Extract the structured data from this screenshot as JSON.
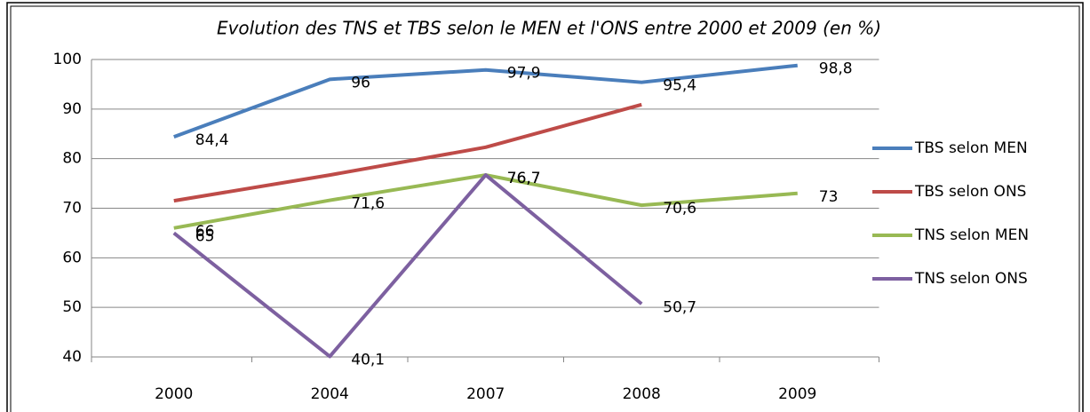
{
  "chart_data": {
    "type": "line",
    "title": "Evolution des TNS et TBS selon le MEN et l'ONS entre 2000 et 2009 (en %)",
    "categories": [
      "2000",
      "2004",
      "2007",
      "2008",
      "2009"
    ],
    "series": [
      {
        "name": "TBS selon MEN",
        "color": "#4a7ebb",
        "values": [
          84.4,
          96,
          97.9,
          95.4,
          98.8
        ],
        "value_labels": [
          "84,4",
          "96",
          "97,9",
          "95,4",
          "98,8"
        ]
      },
      {
        "name": "TBS selon ONS",
        "color": "#be4b48",
        "values": [
          71.5,
          76.7,
          82.3,
          90.9,
          null
        ]
      },
      {
        "name": "TNS selon MEN",
        "color": "#98b954",
        "values": [
          66,
          71.6,
          76.7,
          70.6,
          73
        ],
        "value_labels": [
          "66",
          "71,6",
          "76,7",
          "70,6",
          "73"
        ]
      },
      {
        "name": "TNS selon ONS",
        "color": "#7d60a0",
        "values": [
          65,
          40.1,
          76.7,
          50.7,
          null
        ],
        "value_labels": [
          "65",
          "40,1",
          "76,7",
          "50,7",
          null
        ]
      }
    ],
    "ylim": [
      40,
      100
    ],
    "yticks": [
      40,
      50,
      60,
      70,
      80,
      90,
      100
    ],
    "grid": true,
    "legend": "right"
  }
}
